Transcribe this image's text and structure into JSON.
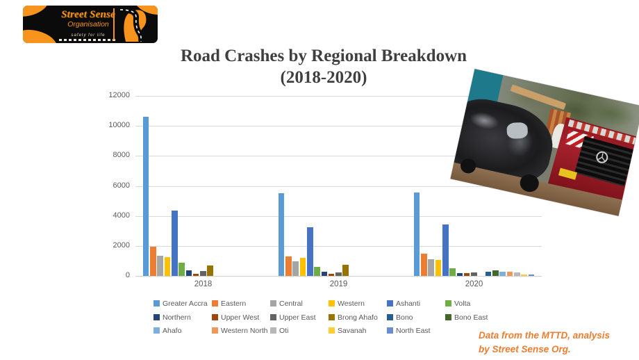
{
  "logo": {
    "title": "Street Sense",
    "subtitle": "Organisation",
    "tagline": "safety for life"
  },
  "title": {
    "line1": "Road Crashes by Regional Breakdown",
    "line2": "(2018-2020)"
  },
  "chart_data": {
    "type": "bar",
    "title": "Road Crashes by Regional Breakdown (2018-2020)",
    "categories": [
      "2018",
      "2019",
      "2020"
    ],
    "series": [
      {
        "name": "Greater Accra",
        "color": "#5B9BD5",
        "values": [
          10600,
          5500,
          5550
        ]
      },
      {
        "name": "Eastern",
        "color": "#ED7D31",
        "values": [
          1950,
          1300,
          1480
        ]
      },
      {
        "name": "Central",
        "color": "#A5A5A5",
        "values": [
          1350,
          950,
          1100
        ]
      },
      {
        "name": "Western",
        "color": "#FFC000",
        "values": [
          1250,
          1200,
          1050
        ]
      },
      {
        "name": "Ashanti",
        "color": "#4472C4",
        "values": [
          4350,
          3250,
          3450
        ]
      },
      {
        "name": "Volta",
        "color": "#70AD47",
        "values": [
          900,
          600,
          520
        ]
      },
      {
        "name": "Northern",
        "color": "#264478",
        "values": [
          350,
          300,
          200
        ]
      },
      {
        "name": "Upper West",
        "color": "#9E480E",
        "values": [
          150,
          150,
          200
        ]
      },
      {
        "name": "Upper East",
        "color": "#636363",
        "values": [
          320,
          250,
          250
        ]
      },
      {
        "name": "Brong Ahafo",
        "color": "#997300",
        "values": [
          700,
          720,
          0
        ]
      },
      {
        "name": "Bono",
        "color": "#255E91",
        "values": [
          0,
          0,
          260
        ]
      },
      {
        "name": "Bono East",
        "color": "#43682B",
        "values": [
          0,
          0,
          350
        ]
      },
      {
        "name": "Ahafo",
        "color": "#7CAFDD",
        "values": [
          0,
          0,
          260
        ]
      },
      {
        "name": "Western North",
        "color": "#F1975A",
        "values": [
          0,
          0,
          300
        ]
      },
      {
        "name": "Oti",
        "color": "#B7B7B7",
        "values": [
          0,
          0,
          250
        ]
      },
      {
        "name": "Savanah",
        "color": "#FFCD33",
        "values": [
          0,
          0,
          100
        ]
      },
      {
        "name": "North East",
        "color": "#698ED0",
        "values": [
          0,
          0,
          70
        ]
      }
    ],
    "ylim": [
      0,
      12000
    ],
    "y_ticks": [
      0,
      2000,
      4000,
      6000,
      8000,
      10000,
      12000
    ],
    "grid": true,
    "legend_position": "bottom",
    "axis_text_color": "#595959"
  },
  "footer": {
    "line1": "Data from the MTTD, analysis",
    "line2": "by Street Sense Org.",
    "color": "#ED7D31"
  }
}
